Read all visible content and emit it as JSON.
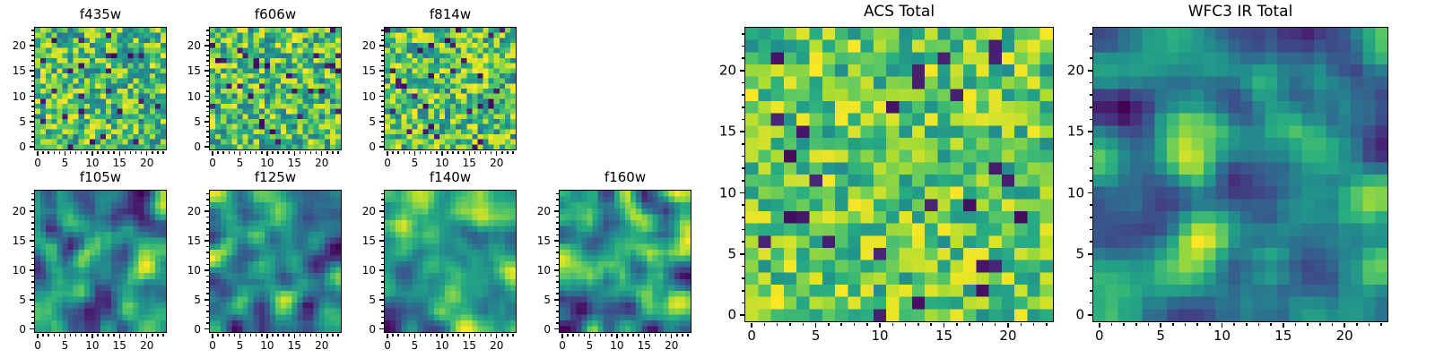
{
  "figure": {
    "background": "#ffffff",
    "colormap": "viridis",
    "colormap_stops": [
      "#440154",
      "#472c7a",
      "#3b528b",
      "#2c718e",
      "#21918c",
      "#27ad81",
      "#5cc863",
      "#aadc32",
      "#fde725"
    ],
    "axis_color": "#000000",
    "values_note": "Pixel values are unlabeled random-noise cutout images; fields are reproduced procedurally from seeds to match the visual texture."
  },
  "chart_data": [
    {
      "type": "heatmap",
      "title": "f435w",
      "shape": [
        24,
        24
      ],
      "extent": [
        -0.5,
        23.5
      ],
      "xticks": [
        0,
        5,
        10,
        15,
        20
      ],
      "yticks": [
        0,
        5,
        10,
        15,
        20
      ],
      "colormap": "viridis",
      "noise_style": "speckle",
      "base": 0.38,
      "low_outlier_fraction": 0.045,
      "seed": 11,
      "values_summary": "24x24 uncorrelated speckle, mostly mid-green to yellow with sparse dark-purple pixels"
    },
    {
      "type": "heatmap",
      "title": "f606w",
      "shape": [
        24,
        24
      ],
      "extent": [
        -0.5,
        23.5
      ],
      "xticks": [
        0,
        5,
        10,
        15,
        20
      ],
      "yticks": [
        0,
        5,
        10,
        15,
        20
      ],
      "colormap": "viridis",
      "noise_style": "speckle",
      "base": 0.38,
      "low_outlier_fraction": 0.045,
      "seed": 22,
      "values_summary": "24x24 uncorrelated speckle, mostly mid-green to yellow with sparse dark-purple pixels"
    },
    {
      "type": "heatmap",
      "title": "f814w",
      "shape": [
        24,
        24
      ],
      "extent": [
        -0.5,
        23.5
      ],
      "xticks": [
        0,
        5,
        10,
        15,
        20
      ],
      "yticks": [
        0,
        5,
        10,
        15,
        20
      ],
      "colormap": "viridis",
      "noise_style": "speckle",
      "base": 0.38,
      "low_outlier_fraction": 0.045,
      "seed": 33,
      "values_summary": "24x24 uncorrelated speckle, mostly mid-green to yellow with sparse dark-purple pixels"
    },
    {
      "type": "heatmap",
      "title": "f105w",
      "shape": [
        24,
        24
      ],
      "extent": [
        -0.5,
        23.5
      ],
      "xticks": [
        0,
        5,
        10,
        15,
        20
      ],
      "yticks": [
        0,
        5,
        10,
        15,
        20
      ],
      "colormap": "viridis",
      "noise_style": "smooth",
      "seed": 44,
      "values_summary": "24x24 spatially correlated noise with bright yellow blobs and dark purple patches"
    },
    {
      "type": "heatmap",
      "title": "f125w",
      "shape": [
        24,
        24
      ],
      "extent": [
        -0.5,
        23.5
      ],
      "xticks": [
        0,
        5,
        10,
        15,
        20
      ],
      "yticks": [
        0,
        5,
        10,
        15,
        20
      ],
      "colormap": "viridis",
      "noise_style": "smooth",
      "seed": 55,
      "values_summary": "24x24 spatially correlated noise with bright yellow blobs and dark purple patches"
    },
    {
      "type": "heatmap",
      "title": "f140w",
      "shape": [
        24,
        24
      ],
      "extent": [
        -0.5,
        23.5
      ],
      "xticks": [
        0,
        5,
        10,
        15,
        20
      ],
      "yticks": [
        0,
        5,
        10,
        15,
        20
      ],
      "colormap": "viridis",
      "noise_style": "smooth",
      "seed": 66,
      "values_summary": "24x24 spatially correlated noise with bright yellow blobs and dark purple patches"
    },
    {
      "type": "heatmap",
      "title": "f160w",
      "shape": [
        24,
        24
      ],
      "extent": [
        -0.5,
        23.5
      ],
      "xticks": [
        0,
        5,
        10,
        15,
        20
      ],
      "yticks": [
        0,
        5,
        10,
        15,
        20
      ],
      "colormap": "viridis",
      "noise_style": "smooth",
      "seed": 77,
      "values_summary": "24x24 spatially correlated noise with bright yellow blobs and dark purple patches"
    },
    {
      "type": "heatmap",
      "title": "ACS Total",
      "shape": [
        24,
        24
      ],
      "extent": [
        -0.5,
        23.5
      ],
      "xticks": [
        0,
        5,
        10,
        15,
        20
      ],
      "yticks": [
        0,
        5,
        10,
        15,
        20
      ],
      "colormap": "viridis",
      "noise_style": "speckle",
      "base": 0.48,
      "low_outlier_fraction": 0.04,
      "seed": 88,
      "values_summary": "24x24 uncorrelated speckle, brighter green-yellow overall with scattered dark-purple pixels"
    },
    {
      "type": "heatmap",
      "title": "WFC3 IR Total",
      "shape": [
        24,
        24
      ],
      "extent": [
        -0.5,
        23.5
      ],
      "xticks": [
        0,
        5,
        10,
        15,
        20
      ],
      "yticks": [
        0,
        5,
        10,
        15,
        20
      ],
      "colormap": "viridis",
      "noise_style": "smooth",
      "seed": 99,
      "values_summary": "24x24 smooth correlated field with a large bright yellow blob and extended dark purple regions"
    }
  ]
}
